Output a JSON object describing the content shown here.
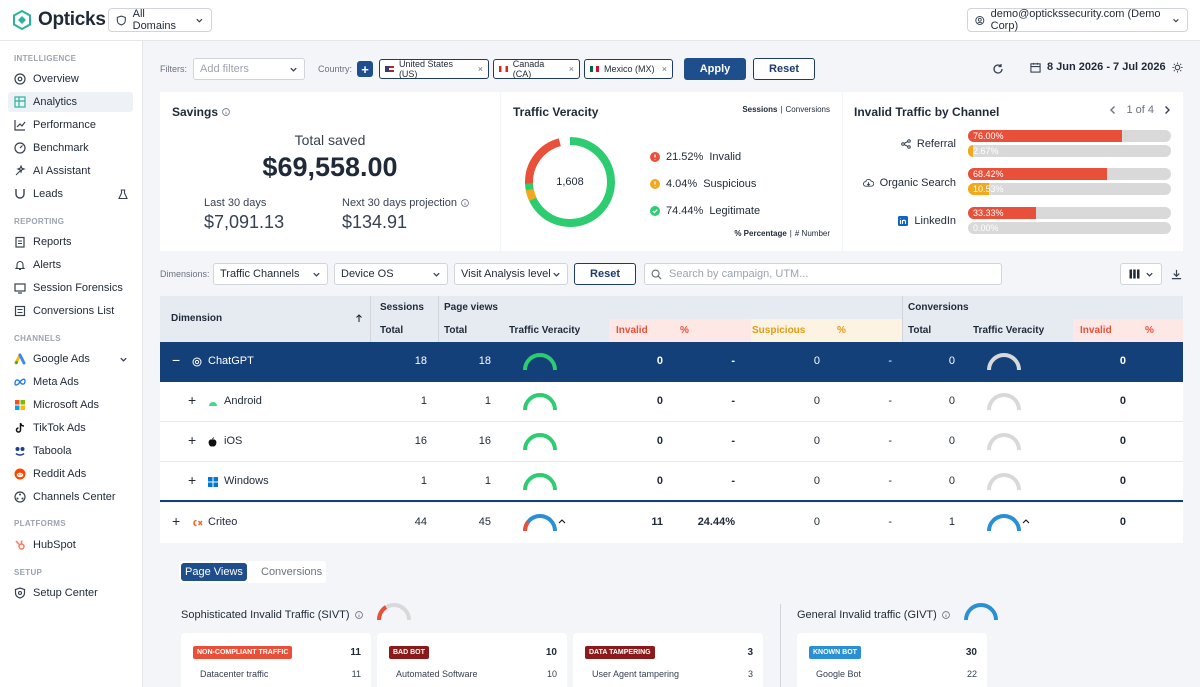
{
  "app": {
    "name": "Opticks",
    "domain_selector": "All Domains",
    "user": "demo@optickssecurity.com (Demo Corp)"
  },
  "sidebar": {
    "sections": [
      {
        "title": "INTELLIGENCE",
        "items": [
          "Overview",
          "Analytics",
          "Performance",
          "Benchmark",
          "AI Assistant",
          "Leads"
        ]
      },
      {
        "title": "REPORTING",
        "items": [
          "Reports",
          "Alerts",
          "Session Forensics",
          "Conversions List"
        ]
      },
      {
        "title": "CHANNELS",
        "items": [
          "Google Ads",
          "Meta Ads",
          "Microsoft Ads",
          "TikTok Ads",
          "Taboola",
          "Reddit Ads",
          "Channels Center"
        ]
      },
      {
        "title": "PLATFORMS",
        "items": [
          "HubSpot"
        ]
      },
      {
        "title": "SETUP",
        "items": [
          "Setup Center"
        ]
      }
    ],
    "active": "Analytics"
  },
  "filters": {
    "label": "Filters:",
    "placeholder": "Add filters",
    "country_label": "Country:",
    "countries": [
      "United States (US)",
      "Canada (CA)",
      "Mexico (MX)"
    ],
    "apply": "Apply",
    "reset": "Reset",
    "date_range": "8 Jun 2026 - 7 Jul 2026"
  },
  "savings": {
    "title": "Savings",
    "total_label": "Total saved",
    "total_value": "$69,558.00",
    "last30_label": "Last 30 days",
    "last30_value": "$7,091.13",
    "next30_label": "Next 30 days projection",
    "next30_value": "$134.91"
  },
  "veracity": {
    "title": "Traffic Veracity",
    "toggle_a": "Sessions",
    "toggle_sep": "|",
    "toggle_b": "Conversions",
    "center": "1,608",
    "items": [
      {
        "pct": "21.52%",
        "label": "Invalid",
        "color": "#e8503a"
      },
      {
        "pct": "4.04%",
        "label": "Suspicious",
        "color": "#f2a81d"
      },
      {
        "pct": "74.44%",
        "label": "Legitimate",
        "color": "#2ecc71"
      }
    ],
    "mode_a": "% Percentage",
    "mode_b": "# Number"
  },
  "invalid_by_channel": {
    "title": "Invalid Traffic by Channel",
    "pager": "1 of 4",
    "rows": [
      {
        "name": "Referral",
        "invalid": "76.00%",
        "invalid_frac": 0.76,
        "suspicious": "2.67%",
        "suspicious_frac": 0.0267
      },
      {
        "name": "Organic Search",
        "invalid": "68.42%",
        "invalid_frac": 0.6842,
        "suspicious": "10.53%",
        "suspicious_frac": 0.1053
      },
      {
        "name": "LinkedIn",
        "invalid": "33.33%",
        "invalid_frac": 0.3333,
        "suspicious": "0.00%",
        "suspicious_frac": 0
      }
    ]
  },
  "dimensions": {
    "label": "Dimensions:",
    "dims": [
      "Traffic Channels",
      "Device OS",
      "Visit Analysis level"
    ],
    "reset": "Reset",
    "search_placeholder": "Search by campaign, UTM..."
  },
  "table": {
    "h_dimension": "Dimension",
    "h_sessions": "Sessions",
    "h_pageviews": "Page views",
    "h_conversions": "Conversions",
    "h_total": "Total",
    "h_veracity": "Traffic Veracity",
    "h_invalid": "Invalid",
    "h_pct": "%",
    "h_suspicious": "Suspicious",
    "rows": [
      {
        "name": "ChatGPT",
        "toggle": "−",
        "sessions": "18",
        "pageviews": "18",
        "invalid": "0",
        "inv_pct": "-",
        "susp": "0",
        "susp_pct": "-",
        "conv": "0",
        "conv_inv": "0"
      },
      {
        "name": "Android",
        "toggle": "+",
        "sessions": "1",
        "pageviews": "1",
        "invalid": "0",
        "inv_pct": "-",
        "susp": "0",
        "susp_pct": "-",
        "conv": "0",
        "conv_inv": "0"
      },
      {
        "name": "iOS",
        "toggle": "+",
        "sessions": "16",
        "pageviews": "16",
        "invalid": "0",
        "inv_pct": "-",
        "susp": "0",
        "susp_pct": "-",
        "conv": "0",
        "conv_inv": "0"
      },
      {
        "name": "Windows",
        "toggle": "+",
        "sessions": "1",
        "pageviews": "1",
        "invalid": "0",
        "inv_pct": "-",
        "susp": "0",
        "susp_pct": "-",
        "conv": "0",
        "conv_inv": "0"
      },
      {
        "name": "Criteo",
        "toggle": "+",
        "sessions": "44",
        "pageviews": "45",
        "invalid": "11",
        "inv_pct": "24.44%",
        "susp": "0",
        "susp_pct": "-",
        "conv": "1",
        "conv_inv": "0"
      }
    ]
  },
  "detail": {
    "tab_a": "Page Views",
    "tab_b": "Conversions",
    "sivt_title": "Sophisticated Invalid Traffic (SIVT)",
    "givt_title": "General Invalid traffic (GIVT)",
    "cards": [
      {
        "tag": "NON-COMPLIANT TRAFFIC",
        "count": "11",
        "sub": "Datacenter traffic",
        "sub_count": "11",
        "color": "#e8503a"
      },
      {
        "tag": "BAD BOT",
        "count": "10",
        "sub": "Automated Software",
        "sub_count": "10",
        "color": "#8b1a1a"
      },
      {
        "tag": "DATA TAMPERING",
        "count": "3",
        "sub": "User Agent tampering",
        "sub_count": "3",
        "color": "#8b1a1a"
      },
      {
        "tag": "KNOWN BOT",
        "count": "30",
        "sub": "Google Bot",
        "sub_count": "22",
        "color": "#2b8fd6"
      }
    ]
  }
}
